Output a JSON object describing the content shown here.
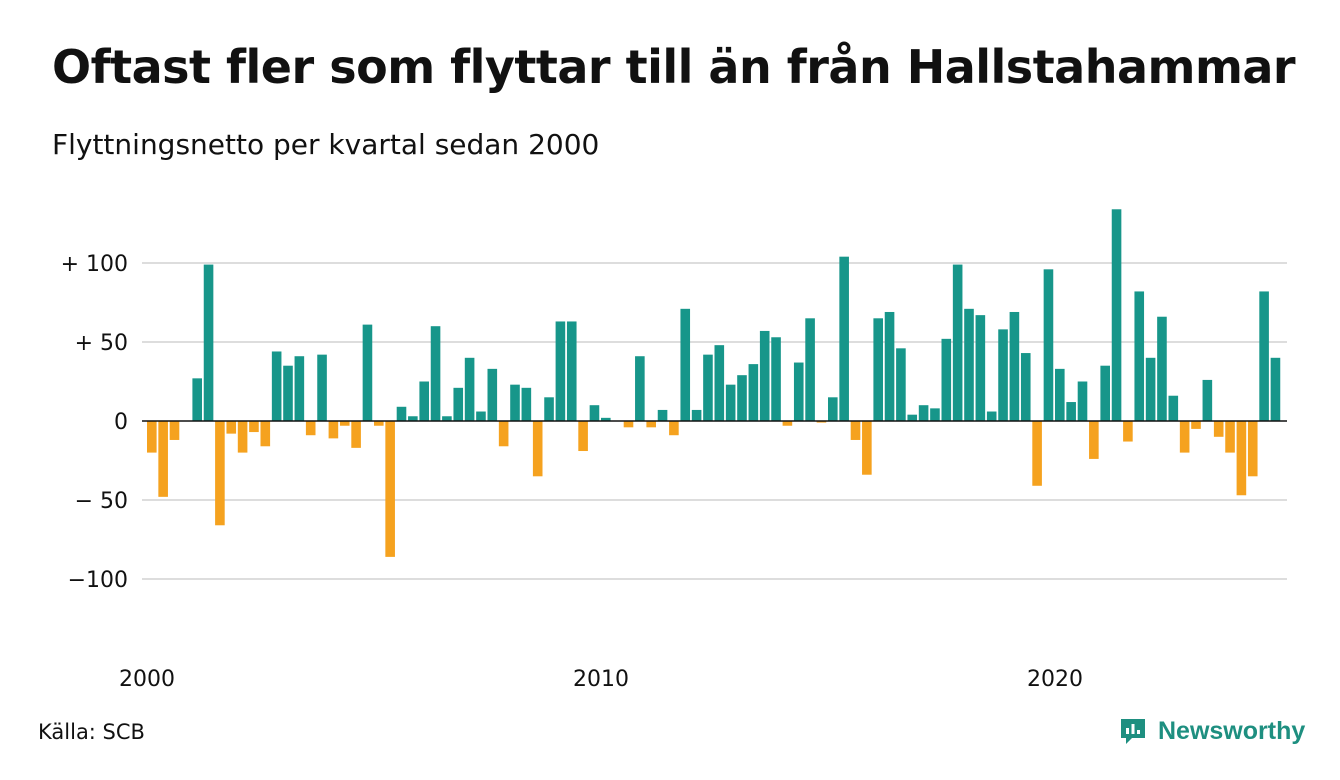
{
  "title": "Oftast fler som flyttar till än från Hallstahammar",
  "subtitle": "Flyttningsnetto per kvartal sedan 2000",
  "source": "Källa: SCB",
  "brand": {
    "name": "Newsworthy",
    "icon": "newsworthy-logo-icon",
    "color": "#1e8f80"
  },
  "colors": {
    "positive": "#17968a",
    "negative": "#f5a21f",
    "grid": "#dddddd",
    "zero_line": "#111111"
  },
  "chart_data": {
    "type": "bar",
    "title": "Oftast fler som flyttar till än från Hallstahammar",
    "subtitle": "Flyttningsnetto per kvartal sedan 2000",
    "x_start": "2000 Q1",
    "x_interval": "quarter",
    "x_ticks": [
      "2000",
      "2010",
      "2020"
    ],
    "y_ticks": [
      {
        "value": 100,
        "label": "+ 100"
      },
      {
        "value": 50,
        "label": "+  50"
      },
      {
        "value": 0,
        "label": "0"
      },
      {
        "value": -50,
        "label": "− 50"
      },
      {
        "value": -100,
        "label": "−100"
      }
    ],
    "ylim": [
      -140,
      140
    ],
    "grid": true,
    "legend": "none",
    "values": [
      -20,
      -48,
      -12,
      0,
      27,
      99,
      -66,
      -8,
      -20,
      -7,
      -16,
      44,
      35,
      41,
      -9,
      42,
      -11,
      -3,
      -17,
      61,
      -3,
      -86,
      9,
      3,
      25,
      60,
      3,
      21,
      40,
      6,
      33,
      -16,
      23,
      21,
      -35,
      15,
      63,
      63,
      -19,
      10,
      2,
      0,
      -4,
      41,
      -4,
      7,
      -9,
      71,
      7,
      42,
      48,
      23,
      29,
      36,
      57,
      53,
      -3,
      37,
      65,
      -1,
      15,
      104,
      -12,
      -34,
      65,
      69,
      46,
      4,
      10,
      8,
      52,
      99,
      71,
      67,
      6,
      58,
      69,
      43,
      -41,
      96,
      33,
      12,
      25,
      -24,
      35,
      134,
      -13,
      82,
      40,
      66,
      16,
      -20,
      -5,
      26,
      -10,
      -20,
      -47,
      -35,
      82,
      40
    ]
  }
}
